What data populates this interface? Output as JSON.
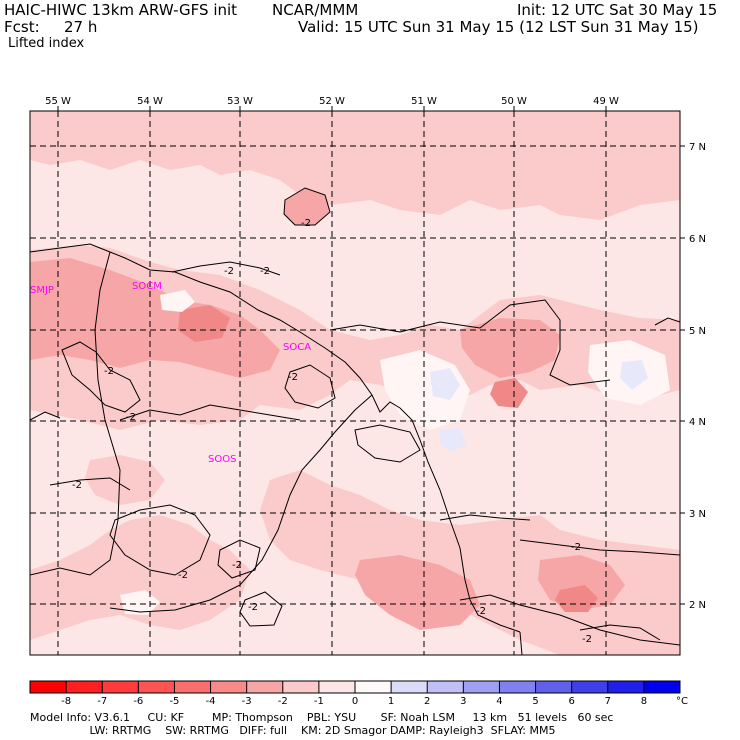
{
  "header": {
    "model": "HAIC-HIWC 13km ARW-GFS init",
    "org": "NCAR/MMM",
    "init": "Init: 12 UTC Sat 30 May 15",
    "fcst_label": "Fcst:",
    "fcst_value": "27 h",
    "valid": "Valid: 15 UTC Sun 31 May 15 (12 LST Sun 31 May 15)",
    "field": "Lifted index"
  },
  "map": {
    "lon_labels": [
      "55 W",
      "54 W",
      "53 W",
      "52 W",
      "51 W",
      "50 W",
      "49 W"
    ],
    "lat_labels": [
      "7 N",
      "6 N",
      "5 N",
      "4 N",
      "3 N",
      "2 N"
    ],
    "stations": [
      "SMJP",
      "SOCM",
      "SOCA",
      "SOOS"
    ],
    "contour_label": "-2",
    "colors": {
      "c_m1": "#fde6e6",
      "c_m2": "#fbcaca",
      "c_m3": "#f6a6a6",
      "c_m4": "#f08888",
      "c_0": "#fff5f5",
      "c_pos": "#e8e8fb",
      "station": "#ff00ff"
    }
  },
  "colorbar": {
    "ticks": [
      "-8",
      "-7",
      "-6",
      "-5",
      "-4",
      "-3",
      "-2",
      "-1",
      "0",
      "1",
      "2",
      "3",
      "4",
      "5",
      "6",
      "7",
      "8"
    ],
    "unit": "°C",
    "colors": [
      "#ff0000",
      "#ff2020",
      "#ff3c3c",
      "#ff5454",
      "#fc6e6e",
      "#f98a8a",
      "#f6a6a6",
      "#fbcaca",
      "#fde6e6",
      "#fffafa",
      "#dcdcfa",
      "#c0c0f6",
      "#a0a0f2",
      "#8080ee",
      "#6060ea",
      "#4040ea",
      "#2020ea",
      "#0000ee"
    ]
  },
  "footer": {
    "line1": "Model Info: V3.6.1     CU: KF        MP: Thompson    PBL: YSU       SF: Noah LSM     13 km   51 levels   60 sec",
    "line2": "                 LW: RRTMG    SW: RRTMG   DIFF: full    KM: 2D Smagor DAMP: Rayleigh3  SFLAY: MM5"
  }
}
